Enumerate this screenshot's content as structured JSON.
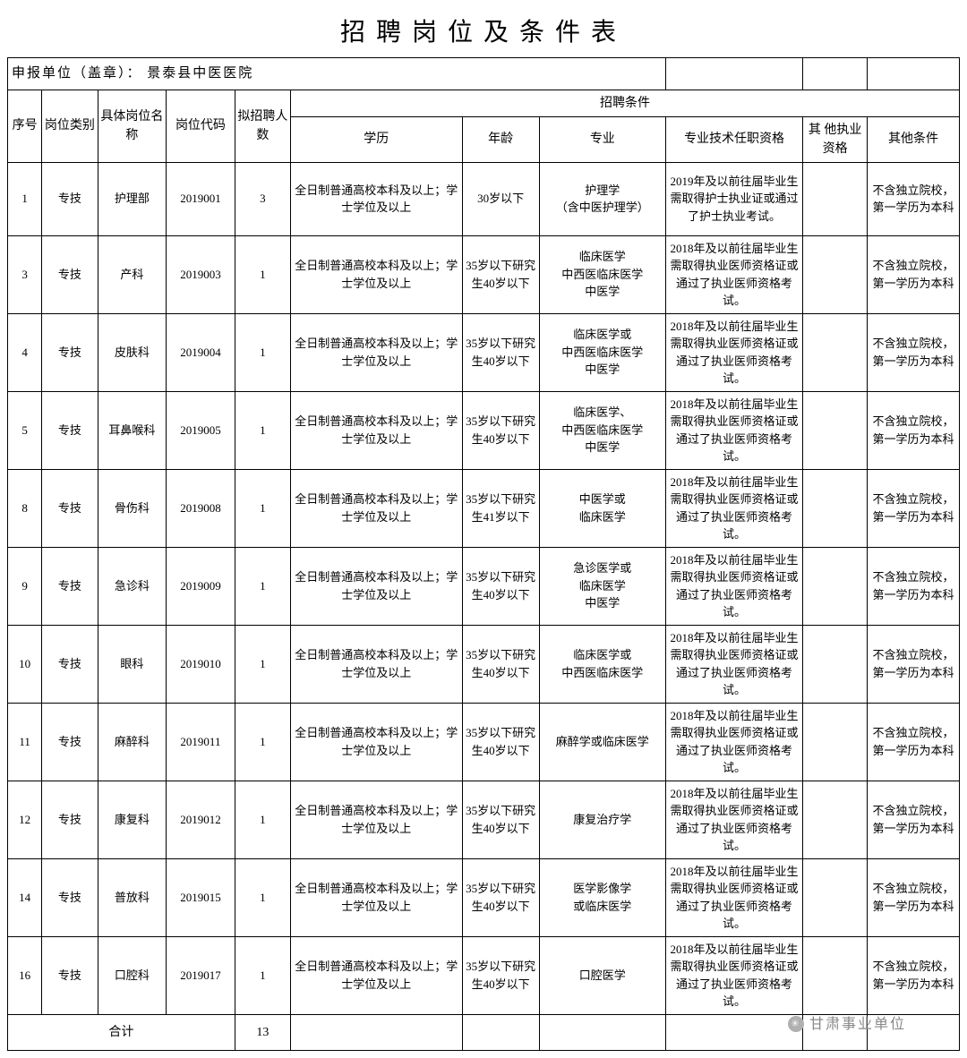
{
  "title": "招聘岗位及条件表",
  "subtitle_label": "申报单位（盖章）：",
  "subtitle_value": "景泰县中医医院",
  "headers": {
    "seq": "序号",
    "category": "岗位类别",
    "position": "具体岗位名称",
    "code": "岗位代码",
    "count": "拟招聘人数",
    "conditions": "招聘条件",
    "education": "学历",
    "age": "年龄",
    "major": "专业",
    "tech_qual": "专业技术任职资格",
    "other_qual": "其 他执业资格",
    "other_cond": "其他条件"
  },
  "col_widths": [
    "30",
    "50",
    "60",
    "60",
    "50",
    "150",
    "70",
    "110",
    "120",
    "60",
    "80"
  ],
  "rows": [
    {
      "seq": "1",
      "category": "专技",
      "position": "护理部",
      "code": "2019001",
      "count": "3",
      "education": "全日制普通高校本科及以上；学士学位及以上",
      "age": "30岁以下",
      "major": "护理学\n（含中医护理学）",
      "tech_qual": "2019年及以前往届毕业生需取得护士执业证或通过了护士执业考试。",
      "other_qual": "",
      "other_cond": "不含独立院校，第一学历为本科"
    },
    {
      "seq": "3",
      "category": "专技",
      "position": "产科",
      "code": "2019003",
      "count": "1",
      "education": "全日制普通高校本科及以上；学士学位及以上",
      "age": "35岁以下研究生40岁以下",
      "major": "临床医学\n中西医临床医学\n中医学",
      "tech_qual": "2018年及以前往届毕业生需取得执业医师资格证或通过了执业医师资格考试。",
      "other_qual": "",
      "other_cond": "不含独立院校，第一学历为本科"
    },
    {
      "seq": "4",
      "category": "专技",
      "position": "皮肤科",
      "code": "2019004",
      "count": "1",
      "education": "全日制普通高校本科及以上；学士学位及以上",
      "age": "35岁以下研究生40岁以下",
      "major": "临床医学或\n中西医临床医学\n中医学",
      "tech_qual": "2018年及以前往届毕业生需取得执业医师资格证或通过了执业医师资格考试。",
      "other_qual": "",
      "other_cond": "不含独立院校，第一学历为本科"
    },
    {
      "seq": "5",
      "category": "专技",
      "position": "耳鼻喉科",
      "code": "2019005",
      "count": "1",
      "education": "全日制普通高校本科及以上；学士学位及以上",
      "age": "35岁以下研究生40岁以下",
      "major": "临床医学、\n中西医临床医学\n中医学",
      "tech_qual": "2018年及以前往届毕业生需取得执业医师资格证或通过了执业医师资格考试。",
      "other_qual": "",
      "other_cond": "不含独立院校，第一学历为本科"
    },
    {
      "seq": "8",
      "category": "专技",
      "position": "骨伤科",
      "code": "2019008",
      "count": "1",
      "education": "全日制普通高校本科及以上；学士学位及以上",
      "age": "35岁以下研究生41岁以下",
      "major": "中医学或\n临床医学",
      "tech_qual": "2018年及以前往届毕业生需取得执业医师资格证或通过了执业医师资格考试。",
      "other_qual": "",
      "other_cond": "不含独立院校，第一学历为本科"
    },
    {
      "seq": "9",
      "category": "专技",
      "position": "急诊科",
      "code": "2019009",
      "count": "1",
      "education": "全日制普通高校本科及以上；学士学位及以上",
      "age": "35岁以下研究生40岁以下",
      "major": "急诊医学或\n临床医学\n中医学",
      "tech_qual": "2018年及以前往届毕业生需取得执业医师资格证或通过了执业医师资格考试。",
      "other_qual": "",
      "other_cond": "不含独立院校，第一学历为本科"
    },
    {
      "seq": "10",
      "category": "专技",
      "position": "眼科",
      "code": "2019010",
      "count": "1",
      "education": "全日制普通高校本科及以上；学士学位及以上",
      "age": "35岁以下研究生40岁以下",
      "major": "临床医学或\n中西医临床医学",
      "tech_qual": "2018年及以前往届毕业生需取得执业医师资格证或通过了执业医师资格考试。",
      "other_qual": "",
      "other_cond": "不含独立院校，第一学历为本科"
    },
    {
      "seq": "11",
      "category": "专技",
      "position": "麻醉科",
      "code": "2019011",
      "count": "1",
      "education": "全日制普通高校本科及以上；学士学位及以上",
      "age": "35岁以下研究生40岁以下",
      "major": "麻醉学或临床医学",
      "tech_qual": "2018年及以前往届毕业生需取得执业医师资格证或通过了执业医师资格考试。",
      "other_qual": "",
      "other_cond": "不含独立院校，第一学历为本科"
    },
    {
      "seq": "12",
      "category": "专技",
      "position": "康复科",
      "code": "2019012",
      "count": "1",
      "education": "全日制普通高校本科及以上；学士学位及以上",
      "age": "35岁以下研究生40岁以下",
      "major": "康复治疗学",
      "tech_qual": "2018年及以前往届毕业生需取得执业医师资格证或通过了执业医师资格考试。",
      "other_qual": "",
      "other_cond": "不含独立院校，第一学历为本科"
    },
    {
      "seq": "14",
      "category": "专技",
      "position": "普放科",
      "code": "2019015",
      "count": "1",
      "education": "全日制普通高校本科及以上；学士学位及以上",
      "age": "35岁以下研究生40岁以下",
      "major": "医学影像学\n或临床医学",
      "tech_qual": "2018年及以前往届毕业生需取得执业医师资格证或通过了执业医师资格考试。",
      "other_qual": "",
      "other_cond": "不含独立院校，第一学历为本科"
    },
    {
      "seq": "16",
      "category": "专技",
      "position": "口腔科",
      "code": "2019017",
      "count": "1",
      "education": "全日制普通高校本科及以上；学士学位及以上",
      "age": "35岁以下研究生40岁以下",
      "major": "口腔医学",
      "tech_qual": "2018年及以前往届毕业生需取得执业医师资格证或通过了执业医师资格考试。",
      "other_qual": "",
      "other_cond": "不含独立院校，第一学历为本科"
    }
  ],
  "total": {
    "label": "合计",
    "count": "13"
  },
  "watermark": "甘肃事业单位"
}
